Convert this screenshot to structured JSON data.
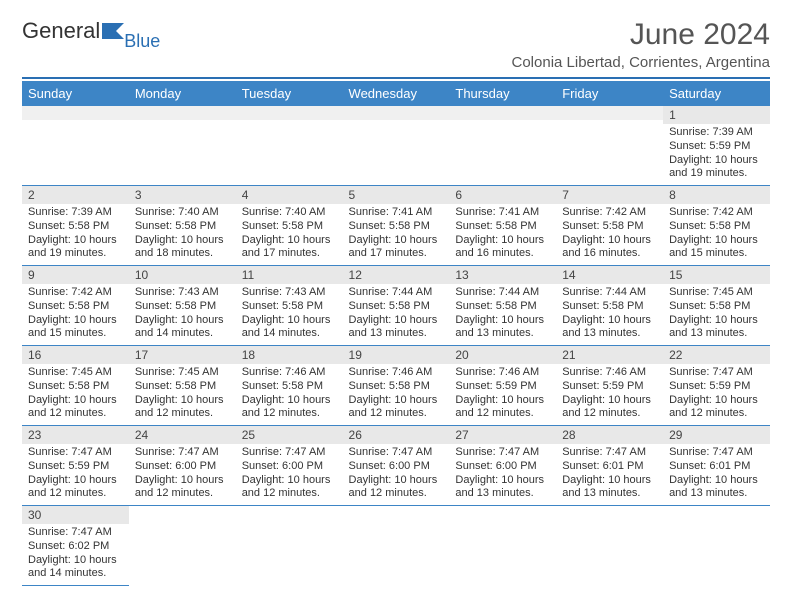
{
  "brand": {
    "word1": "General",
    "word2": "Blue"
  },
  "header": {
    "title": "June 2024",
    "location": "Colonia Libertad, Corrientes, Argentina"
  },
  "colors": {
    "accent": "#3d85c6",
    "rule": "#2a6fb3",
    "gray": "#e8e8e8"
  },
  "weekdays": [
    "Sunday",
    "Monday",
    "Tuesday",
    "Wednesday",
    "Thursday",
    "Friday",
    "Saturday"
  ],
  "startOffset": 6,
  "days": [
    {
      "n": 1,
      "sr": "7:39 AM",
      "ss": "5:59 PM",
      "dl": "10 hours and 19 minutes."
    },
    {
      "n": 2,
      "sr": "7:39 AM",
      "ss": "5:58 PM",
      "dl": "10 hours and 19 minutes."
    },
    {
      "n": 3,
      "sr": "7:40 AM",
      "ss": "5:58 PM",
      "dl": "10 hours and 18 minutes."
    },
    {
      "n": 4,
      "sr": "7:40 AM",
      "ss": "5:58 PM",
      "dl": "10 hours and 17 minutes."
    },
    {
      "n": 5,
      "sr": "7:41 AM",
      "ss": "5:58 PM",
      "dl": "10 hours and 17 minutes."
    },
    {
      "n": 6,
      "sr": "7:41 AM",
      "ss": "5:58 PM",
      "dl": "10 hours and 16 minutes."
    },
    {
      "n": 7,
      "sr": "7:42 AM",
      "ss": "5:58 PM",
      "dl": "10 hours and 16 minutes."
    },
    {
      "n": 8,
      "sr": "7:42 AM",
      "ss": "5:58 PM",
      "dl": "10 hours and 15 minutes."
    },
    {
      "n": 9,
      "sr": "7:42 AM",
      "ss": "5:58 PM",
      "dl": "10 hours and 15 minutes."
    },
    {
      "n": 10,
      "sr": "7:43 AM",
      "ss": "5:58 PM",
      "dl": "10 hours and 14 minutes."
    },
    {
      "n": 11,
      "sr": "7:43 AM",
      "ss": "5:58 PM",
      "dl": "10 hours and 14 minutes."
    },
    {
      "n": 12,
      "sr": "7:44 AM",
      "ss": "5:58 PM",
      "dl": "10 hours and 13 minutes."
    },
    {
      "n": 13,
      "sr": "7:44 AM",
      "ss": "5:58 PM",
      "dl": "10 hours and 13 minutes."
    },
    {
      "n": 14,
      "sr": "7:44 AM",
      "ss": "5:58 PM",
      "dl": "10 hours and 13 minutes."
    },
    {
      "n": 15,
      "sr": "7:45 AM",
      "ss": "5:58 PM",
      "dl": "10 hours and 13 minutes."
    },
    {
      "n": 16,
      "sr": "7:45 AM",
      "ss": "5:58 PM",
      "dl": "10 hours and 12 minutes."
    },
    {
      "n": 17,
      "sr": "7:45 AM",
      "ss": "5:58 PM",
      "dl": "10 hours and 12 minutes."
    },
    {
      "n": 18,
      "sr": "7:46 AM",
      "ss": "5:58 PM",
      "dl": "10 hours and 12 minutes."
    },
    {
      "n": 19,
      "sr": "7:46 AM",
      "ss": "5:58 PM",
      "dl": "10 hours and 12 minutes."
    },
    {
      "n": 20,
      "sr": "7:46 AM",
      "ss": "5:59 PM",
      "dl": "10 hours and 12 minutes."
    },
    {
      "n": 21,
      "sr": "7:46 AM",
      "ss": "5:59 PM",
      "dl": "10 hours and 12 minutes."
    },
    {
      "n": 22,
      "sr": "7:47 AM",
      "ss": "5:59 PM",
      "dl": "10 hours and 12 minutes."
    },
    {
      "n": 23,
      "sr": "7:47 AM",
      "ss": "5:59 PM",
      "dl": "10 hours and 12 minutes."
    },
    {
      "n": 24,
      "sr": "7:47 AM",
      "ss": "6:00 PM",
      "dl": "10 hours and 12 minutes."
    },
    {
      "n": 25,
      "sr": "7:47 AM",
      "ss": "6:00 PM",
      "dl": "10 hours and 12 minutes."
    },
    {
      "n": 26,
      "sr": "7:47 AM",
      "ss": "6:00 PM",
      "dl": "10 hours and 12 minutes."
    },
    {
      "n": 27,
      "sr": "7:47 AM",
      "ss": "6:00 PM",
      "dl": "10 hours and 13 minutes."
    },
    {
      "n": 28,
      "sr": "7:47 AM",
      "ss": "6:01 PM",
      "dl": "10 hours and 13 minutes."
    },
    {
      "n": 29,
      "sr": "7:47 AM",
      "ss": "6:01 PM",
      "dl": "10 hours and 13 minutes."
    },
    {
      "n": 30,
      "sr": "7:47 AM",
      "ss": "6:02 PM",
      "dl": "10 hours and 14 minutes."
    }
  ],
  "labels": {
    "sunrise": "Sunrise:",
    "sunset": "Sunset:",
    "daylight": "Daylight:"
  }
}
